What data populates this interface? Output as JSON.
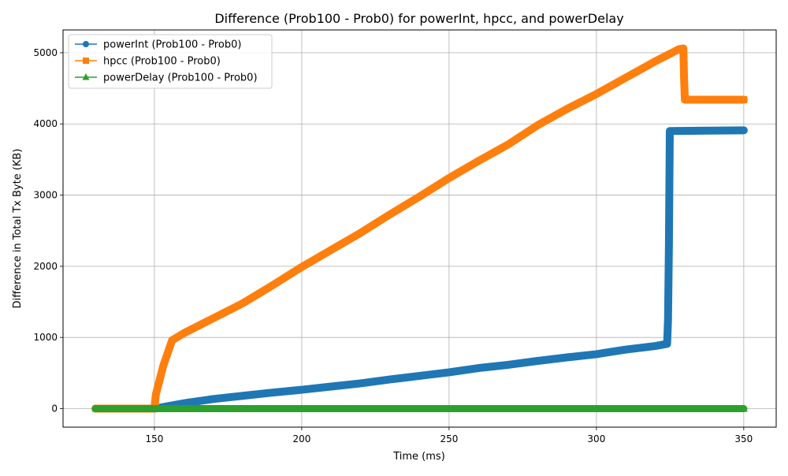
{
  "chart_data": {
    "type": "line",
    "title": "Difference (Prob100 - Prob0) for powerInt, hpcc, and powerDelay",
    "xlabel": "Time (ms)",
    "ylabel": "Difference in Total Tx Byte (KB)",
    "xlim": [
      119,
      361
    ],
    "ylim": [
      -260,
      5320
    ],
    "xticks": [
      150,
      200,
      250,
      300,
      350
    ],
    "yticks": [
      0,
      1000,
      2000,
      3000,
      4000,
      5000
    ],
    "grid": true,
    "legend_position": "top-left",
    "series": [
      {
        "name": "powerInt (Prob100 - Prob0)",
        "color": "#1f77b4",
        "marker": "circle",
        "x": [
          130,
          140,
          150,
          160,
          170,
          180,
          190,
          200,
          210,
          220,
          230,
          240,
          250,
          260,
          270,
          280,
          290,
          300,
          310,
          320,
          324,
          324.3,
          324.6,
          324.9,
          350
        ],
        "y": [
          0,
          0,
          0,
          75,
          135,
          180,
          225,
          265,
          310,
          355,
          410,
          460,
          510,
          570,
          615,
          670,
          720,
          765,
          830,
          880,
          910,
          1250,
          2300,
          3900,
          3910
        ]
      },
      {
        "name": "hpcc (Prob100 - Prob0)",
        "color": "#ff7f0e",
        "marker": "square",
        "x": [
          130,
          140,
          150,
          150.5,
          153,
          156,
          160,
          170,
          180,
          190,
          200,
          210,
          220,
          230,
          240,
          250,
          260,
          270,
          280,
          290,
          300,
          310,
          320,
          328,
          329.5,
          329.7,
          330,
          350
        ],
        "y": [
          0,
          0,
          0,
          200,
          600,
          960,
          1060,
          1270,
          1480,
          1730,
          1990,
          2230,
          2470,
          2730,
          2980,
          3240,
          3480,
          3710,
          3980,
          4210,
          4420,
          4650,
          4880,
          5050,
          5060,
          4700,
          4340,
          4340
        ]
      },
      {
        "name": "powerDelay (Prob100 - Prob0)",
        "color": "#2ca02c",
        "marker": "triangle",
        "x": [
          130,
          150,
          175,
          200,
          225,
          250,
          275,
          300,
          314,
          350
        ],
        "y": [
          0,
          0,
          0,
          0,
          0,
          0,
          0,
          0,
          0,
          0
        ]
      }
    ]
  }
}
